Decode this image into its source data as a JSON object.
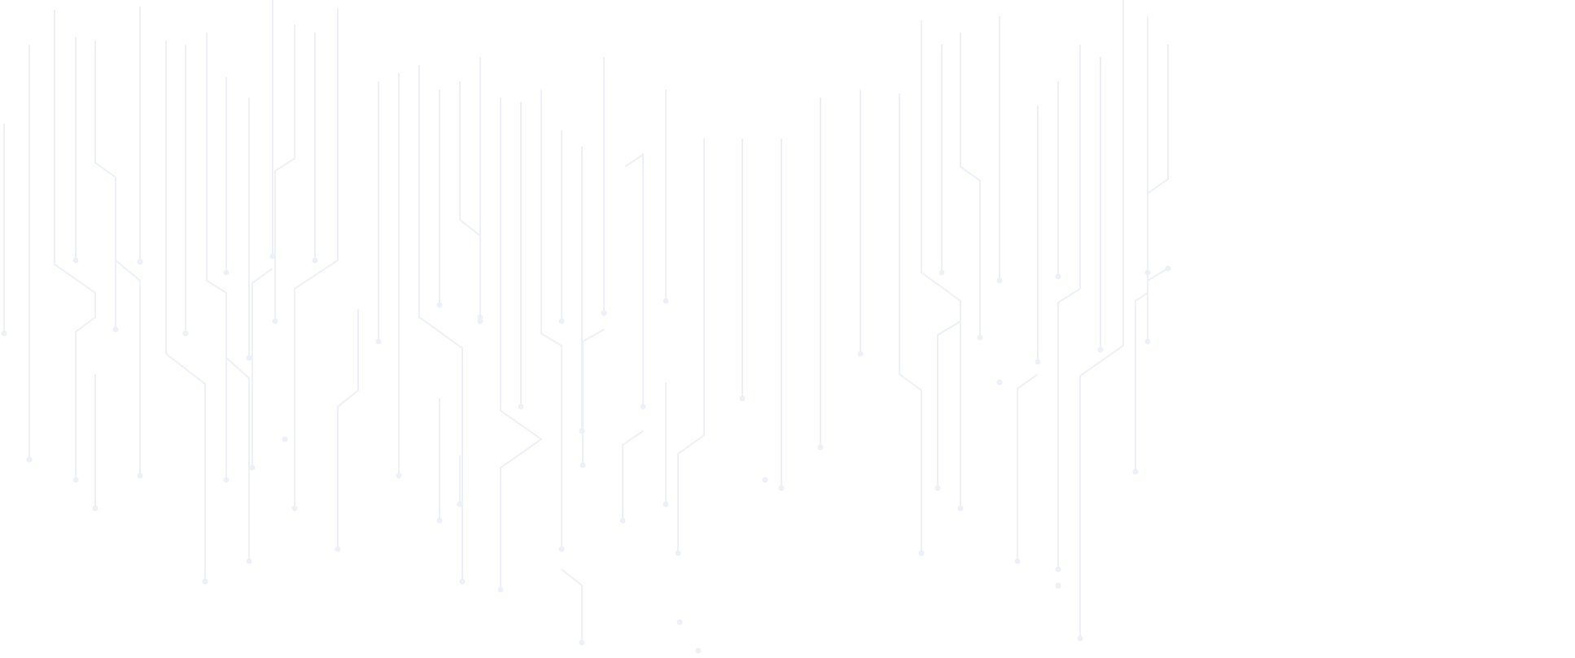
{
  "background": {
    "pattern": "circuit-lines",
    "line_color": "#eef0f8",
    "background_color": "#ffffff"
  }
}
